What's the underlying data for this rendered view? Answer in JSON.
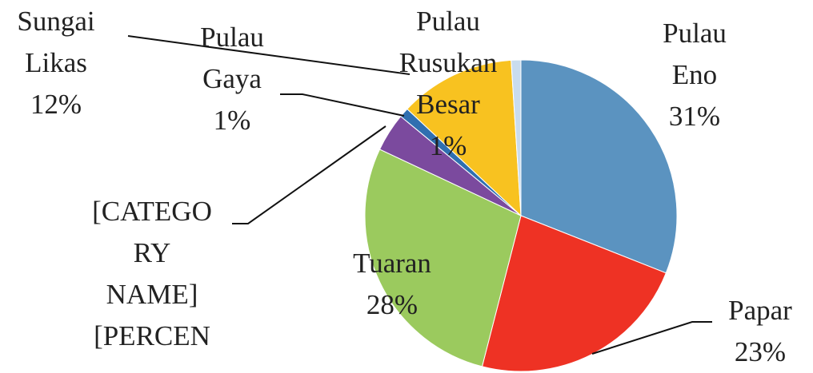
{
  "chart_data": {
    "type": "pie",
    "categories": [
      "Pulau Eno",
      "Papar",
      "Tuaran",
      "[CATEGORY NAME]",
      "Pulau Gaya",
      "Sungai Likas",
      "Pulau Rusukan Besar"
    ],
    "values": [
      31,
      23,
      28,
      4,
      1,
      12,
      1
    ],
    "value_labels": [
      "31%",
      "23%",
      "28%",
      "[PERCEN",
      "1%",
      "12%",
      "1%"
    ],
    "colors": [
      "#5b93c0",
      "#ee3224",
      "#9bca5e",
      "#7b4a9e",
      "#2f6fb0",
      "#f8c220",
      "#c9dcee"
    ]
  }
}
